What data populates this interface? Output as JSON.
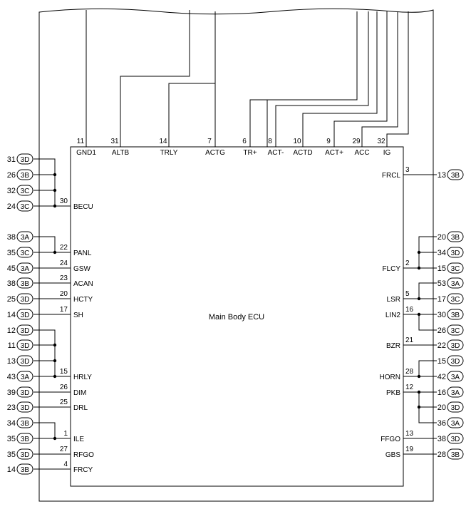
{
  "ecu_label": "Main Body ECU",
  "top_pins": [
    {
      "pin": "11",
      "name": "GND1"
    },
    {
      "pin": "31",
      "name": "ALTB"
    },
    {
      "pin": "14",
      "name": "TRLY"
    },
    {
      "pin": "7",
      "name": "ACTG"
    },
    {
      "pin": "6",
      "name": "TR+"
    },
    {
      "pin": "8",
      "name": "ACT-"
    },
    {
      "pin": "10",
      "name": "ACTD"
    },
    {
      "pin": "9",
      "name": "ACT+"
    },
    {
      "pin": "29",
      "name": "ACC"
    },
    {
      "pin": "32",
      "name": "IG"
    }
  ],
  "left_pins": [
    {
      "pin": "30",
      "name": "BECU"
    },
    {
      "pin": "22",
      "name": "PANL"
    },
    {
      "pin": "24",
      "name": "GSW"
    },
    {
      "pin": "23",
      "name": "ACAN"
    },
    {
      "pin": "20",
      "name": "HCTY"
    },
    {
      "pin": "17",
      "name": "SH"
    },
    {
      "pin": "15",
      "name": "HRLY"
    },
    {
      "pin": "26",
      "name": "DIM"
    },
    {
      "pin": "25",
      "name": "DRL"
    },
    {
      "pin": "1",
      "name": "ILE"
    },
    {
      "pin": "27",
      "name": "RFGO"
    },
    {
      "pin": "4",
      "name": "FRCY"
    }
  ],
  "right_pins": [
    {
      "pin": "3",
      "name": "FRCL"
    },
    {
      "pin": "2",
      "name": "FLCY"
    },
    {
      "pin": "5",
      "name": "LSR"
    },
    {
      "pin": "16",
      "name": "LIN2"
    },
    {
      "pin": "21",
      "name": "BZR"
    },
    {
      "pin": "28",
      "name": "HORN"
    },
    {
      "pin": "12",
      "name": "PKB"
    },
    {
      "pin": "13",
      "name": "FFGO"
    },
    {
      "pin": "19",
      "name": "GBS"
    }
  ],
  "left_connectors": [
    {
      "num": "31",
      "conn": "3D"
    },
    {
      "num": "26",
      "conn": "3B"
    },
    {
      "num": "32",
      "conn": "3C"
    },
    {
      "num": "24",
      "conn": "3C"
    },
    {
      "num": "38",
      "conn": "3A"
    },
    {
      "num": "35",
      "conn": "3C"
    },
    {
      "num": "45",
      "conn": "3A"
    },
    {
      "num": "38",
      "conn": "3B"
    },
    {
      "num": "25",
      "conn": "3D"
    },
    {
      "num": "14",
      "conn": "3D"
    },
    {
      "num": "12",
      "conn": "3D"
    },
    {
      "num": "11",
      "conn": "3D"
    },
    {
      "num": "13",
      "conn": "3D"
    },
    {
      "num": "43",
      "conn": "3A"
    },
    {
      "num": "39",
      "conn": "3D"
    },
    {
      "num": "23",
      "conn": "3D"
    },
    {
      "num": "34",
      "conn": "3B"
    },
    {
      "num": "35",
      "conn": "3B"
    },
    {
      "num": "35",
      "conn": "3D"
    },
    {
      "num": "14",
      "conn": "3B"
    }
  ],
  "right_connectors": [
    {
      "num": "13",
      "conn": "3B"
    },
    {
      "num": "20",
      "conn": "3B"
    },
    {
      "num": "34",
      "conn": "3D"
    },
    {
      "num": "15",
      "conn": "3C"
    },
    {
      "num": "53",
      "conn": "3A"
    },
    {
      "num": "17",
      "conn": "3C"
    },
    {
      "num": "30",
      "conn": "3B"
    },
    {
      "num": "26",
      "conn": "3C"
    },
    {
      "num": "22",
      "conn": "3D"
    },
    {
      "num": "15",
      "conn": "3D"
    },
    {
      "num": "42",
      "conn": "3A"
    },
    {
      "num": "16",
      "conn": "3A"
    },
    {
      "num": "20",
      "conn": "3D"
    },
    {
      "num": "36",
      "conn": "3A"
    },
    {
      "num": "38",
      "conn": "3D"
    },
    {
      "num": "28",
      "conn": "3B"
    }
  ]
}
